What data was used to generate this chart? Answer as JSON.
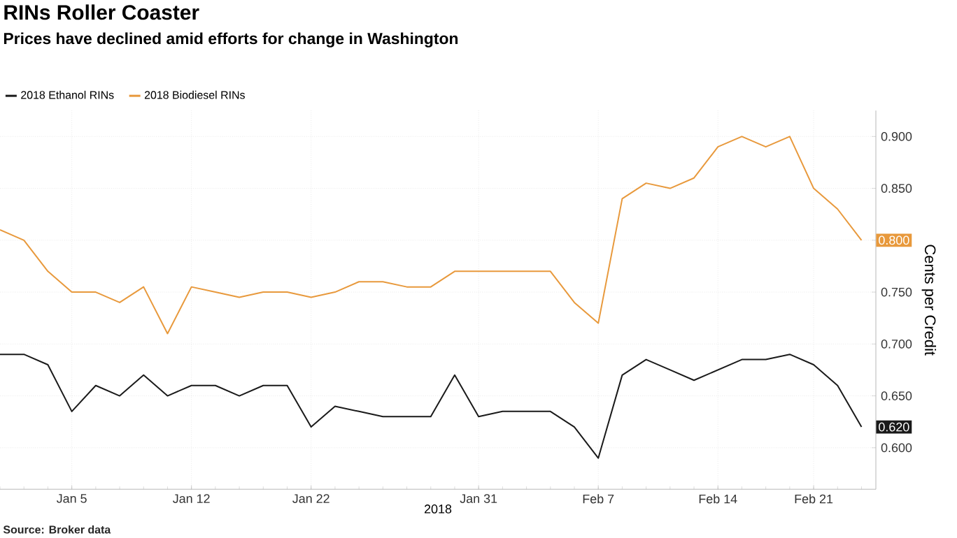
{
  "chart_data": {
    "type": "line",
    "title": "RINs Roller Coaster",
    "subtitle": "Prices have declined amid efforts for change in Washington",
    "xlabel": "2018",
    "ylabel": "Cents per Credit",
    "categories": [
      null,
      null,
      null,
      "Jan 5",
      null,
      null,
      null,
      null,
      "Jan 12",
      null,
      null,
      null,
      null,
      "Jan 22",
      null,
      null,
      null,
      null,
      null,
      null,
      "Jan 31",
      null,
      null,
      null,
      null,
      "Feb 7",
      null,
      null,
      null,
      null,
      "Feb 14",
      null,
      null,
      null,
      "Feb 21",
      null,
      null
    ],
    "series": [
      {
        "name": "2018 Ethanol RINs",
        "color": "#1a1a1a",
        "values": [
          0.69,
          0.69,
          0.68,
          0.635,
          0.66,
          0.65,
          0.67,
          0.65,
          0.66,
          0.66,
          0.65,
          0.66,
          0.66,
          0.62,
          0.64,
          0.635,
          0.63,
          0.63,
          0.63,
          0.67,
          0.63,
          0.635,
          0.635,
          0.635,
          0.62,
          0.59,
          0.67,
          0.685,
          0.675,
          0.665,
          0.675,
          0.685,
          0.685,
          0.69,
          0.68,
          0.66,
          0.62
        ],
        "value_labels": [
          null,
          null,
          null,
          null,
          null,
          null,
          null,
          null,
          null,
          null,
          null,
          null,
          null,
          null,
          null,
          null,
          null,
          null,
          null,
          null,
          null,
          null,
          null,
          null,
          null,
          null,
          null,
          null,
          null,
          null,
          null,
          null,
          null,
          null,
          null,
          null,
          "0.620"
        ]
      },
      {
        "name": "2018 Biodiesel RINs",
        "color": "#e8993c",
        "values": [
          0.81,
          0.8,
          0.77,
          0.75,
          0.75,
          0.74,
          0.755,
          0.71,
          0.755,
          0.75,
          0.745,
          0.75,
          0.75,
          0.745,
          0.75,
          0.76,
          0.76,
          0.755,
          0.755,
          0.77,
          0.77,
          0.77,
          0.77,
          0.77,
          0.74,
          0.72,
          0.84,
          0.855,
          0.85,
          0.86,
          0.89,
          0.9,
          0.89,
          0.9,
          0.85,
          0.83,
          0.8
        ],
        "value_labels": [
          null,
          null,
          null,
          null,
          null,
          null,
          null,
          null,
          null,
          null,
          null,
          null,
          null,
          null,
          null,
          null,
          null,
          null,
          null,
          null,
          null,
          null,
          null,
          null,
          null,
          null,
          null,
          null,
          null,
          null,
          null,
          null,
          null,
          null,
          null,
          null,
          "0.800"
        ]
      }
    ],
    "ylim": [
      0.56,
      0.925
    ],
    "yticks": [
      {
        "value": 0.6,
        "label": "0.600"
      },
      {
        "value": 0.65,
        "label": "0.650"
      },
      {
        "value": 0.7,
        "label": "0.700"
      },
      {
        "value": 0.75,
        "label": "0.750"
      },
      {
        "value": 0.8,
        "label": null
      },
      {
        "value": 0.85,
        "label": "0.850"
      },
      {
        "value": 0.9,
        "label": "0.900"
      }
    ],
    "grid": true,
    "legend": "top left",
    "marker": "none",
    "line_style": "solid",
    "annotations": [
      "Source: Broker data"
    ]
  }
}
